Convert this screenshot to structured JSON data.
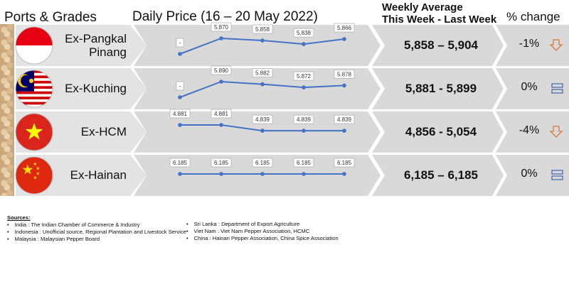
{
  "headers": {
    "ports": "Ports & Grades",
    "daily": "Daily Price (16 – 20 May 2022)",
    "weekly_line1": "Weekly Average",
    "weekly_line2": "This Week - Last Week",
    "pct": "% change"
  },
  "chart_data": {
    "type": "line",
    "title": "Daily Price (16 – 20 May 2022)",
    "x_points": 5,
    "series": [
      {
        "name": "Ex-Pangkal Pinang",
        "labels": [
          "-",
          "5.870",
          "5.858",
          "5.838",
          "5.866"
        ],
        "values": [
          null,
          5870,
          5858,
          5838,
          5866
        ],
        "weekly_range": "5,858 – 5,904",
        "pct_change": "-1%",
        "trend": "down",
        "flag": "indonesia"
      },
      {
        "name": "Ex-Kuching",
        "labels": [
          "-",
          "5.890",
          "5.882",
          "5.872",
          "5.878"
        ],
        "values": [
          null,
          5890,
          5882,
          5872,
          5878
        ],
        "weekly_range": "5,881 - 5,899",
        "pct_change": "0%",
        "trend": "flat",
        "flag": "malaysia"
      },
      {
        "name": "Ex-HCM",
        "labels": [
          "4.881",
          "4.881",
          "4.839",
          "4.839",
          "4.839"
        ],
        "values": [
          4881,
          4881,
          4839,
          4839,
          4839
        ],
        "weekly_range": "4,856 - 5,054",
        "pct_change": "-4%",
        "trend": "down",
        "flag": "vietnam"
      },
      {
        "name": "Ex-Hainan",
        "labels": [
          "6.185",
          "6.185",
          "6.185",
          "6.185",
          "6.185"
        ],
        "values": [
          6185,
          6185,
          6185,
          6185,
          6185
        ],
        "weekly_range": "6,185 – 6,185",
        "pct_change": "0%",
        "trend": "flat",
        "flag": "china"
      }
    ]
  },
  "colors": {
    "line": "#4472c4",
    "band": "#d9d9d9",
    "band_light": "#e3e3e3",
    "arrow_down": "#d9793a",
    "flat_icon": "#4a6fa8"
  },
  "sources": {
    "title": "Sources:",
    "col1": [
      "India : The Indian Chamber of Commerce & Industry",
      "Indonesia : Unofficial source, Regional Plantation and Livestock Service",
      "Malaysia : Malaysian Pepper Board"
    ],
    "col2": [
      "Sri Lanka : Department of Export Agriculture",
      "Viet Nam : Viet Nam Pepper Association, HCMC",
      "China : Hainan Pepper Association, China Spice Association"
    ]
  }
}
